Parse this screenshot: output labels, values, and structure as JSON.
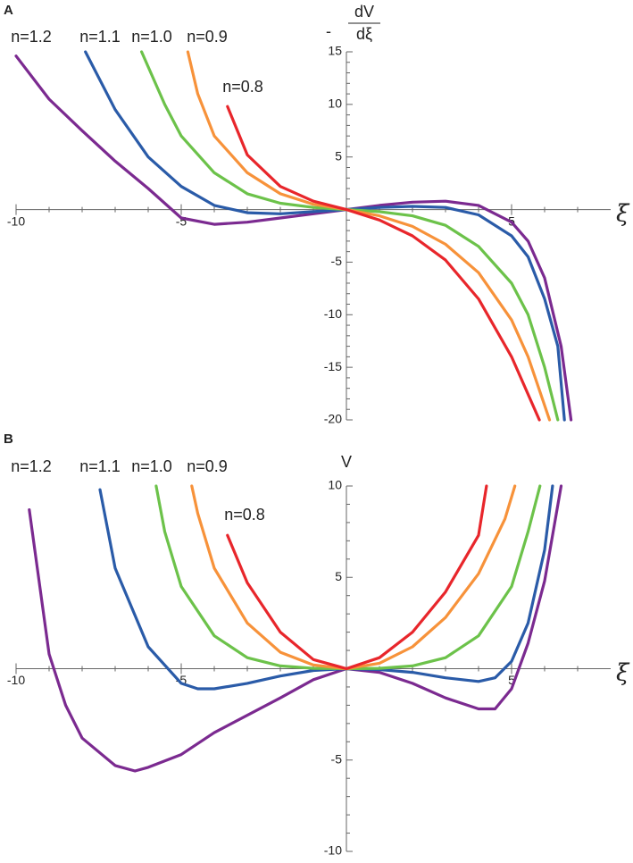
{
  "chart_data": [
    {
      "type": "line",
      "panel_label": "A",
      "y_label": {
        "sign": "-",
        "numerator": "dV",
        "denominator": "dξ"
      },
      "x_label": "ξ",
      "xlim": [
        -10,
        8
      ],
      "ylim": [
        -20,
        15
      ],
      "xticks": [
        -10,
        -5,
        5
      ],
      "yticks": [
        -20,
        -15,
        -10,
        -5,
        5,
        10,
        15
      ],
      "xminorticks": [
        -9,
        -8,
        -7,
        -6,
        -4,
        -3,
        -2,
        -1,
        1,
        2,
        3,
        4,
        6,
        7
      ],
      "yminorticks": [
        -19,
        -18,
        -17,
        -16,
        -14,
        -13,
        -12,
        -11,
        -9,
        -8,
        -7,
        -6,
        -4,
        -3,
        -2,
        -1,
        1,
        2,
        3,
        4,
        6,
        7,
        8,
        9,
        11,
        12,
        13,
        14
      ],
      "series": [
        {
          "name": "n=1.2",
          "color": "#7b2a90",
          "x": [
            -10,
            -9,
            -8,
            -7,
            -6,
            -5,
            -4,
            -3,
            -2,
            -1,
            0,
            1,
            2,
            3,
            4,
            5,
            5.5,
            6,
            6.5,
            6.8
          ],
          "values": [
            14.6,
            10.5,
            7.5,
            4.6,
            2.0,
            -0.8,
            -1.4,
            -1.2,
            -0.8,
            -0.4,
            0,
            0.4,
            0.7,
            0.8,
            0.4,
            -1.2,
            -3,
            -6.5,
            -13,
            -20
          ]
        },
        {
          "name": "n=1.1",
          "color": "#2a5ba8",
          "x": [
            -7.9,
            -7,
            -6,
            -5,
            -4,
            -3,
            -2,
            -1,
            0,
            1,
            2,
            3,
            4,
            5,
            5.5,
            6,
            6.4,
            6.6
          ],
          "values": [
            15,
            9.5,
            5,
            2.2,
            0.4,
            -0.3,
            -0.4,
            -0.2,
            0,
            0.2,
            0.3,
            0.2,
            -0.5,
            -2.5,
            -4.5,
            -8.5,
            -13,
            -20
          ]
        },
        {
          "name": "n=1.0",
          "color": "#6cc24a",
          "x": [
            -6.2,
            -5.5,
            -5,
            -4,
            -3,
            -2,
            -1,
            0,
            1,
            2,
            3,
            4,
            5,
            5.5,
            6,
            6.4
          ],
          "values": [
            15,
            10,
            7,
            3.5,
            1.5,
            0.6,
            0.2,
            0,
            -0.2,
            -0.6,
            -1.5,
            -3.5,
            -7,
            -10,
            -15,
            -20
          ]
        },
        {
          "name": "n=0.9",
          "color": "#f7923a",
          "x": [
            -4.8,
            -4.5,
            -4,
            -3,
            -2,
            -1,
            0,
            1,
            2,
            3,
            4,
            5,
            5.5,
            6.15
          ],
          "values": [
            15,
            11,
            7,
            3.5,
            1.5,
            0.5,
            0,
            -0.6,
            -1.6,
            -3.3,
            -6,
            -10.5,
            -14,
            -20
          ]
        },
        {
          "name": "n=0.8",
          "color": "#e8262b",
          "x": [
            -3.6,
            -3,
            -2,
            -1,
            0,
            1,
            2,
            3,
            4,
            5,
            5.84
          ],
          "values": [
            9.8,
            5.2,
            2.2,
            0.8,
            0,
            -1.0,
            -2.5,
            -4.8,
            -8.5,
            -14,
            -20
          ]
        }
      ]
    },
    {
      "type": "line",
      "panel_label": "B",
      "y_label": {
        "text": "V"
      },
      "x_label": "ξ",
      "xlim": [
        -10,
        8
      ],
      "ylim": [
        -10,
        10
      ],
      "xticks": [
        -10,
        -5,
        5
      ],
      "yticks": [
        -10,
        -5,
        5,
        10
      ],
      "xminorticks": [
        -9,
        -8,
        -7,
        -6,
        -4,
        -3,
        -2,
        -1,
        1,
        2,
        3,
        4,
        6,
        7
      ],
      "yminorticks": [
        -9,
        -8,
        -7,
        -6,
        -4,
        -3,
        -2,
        -1,
        1,
        2,
        3,
        4,
        6,
        7,
        8,
        9
      ],
      "series": [
        {
          "name": "n=1.2",
          "color": "#7b2a90",
          "x": [
            -9.6,
            -9,
            -8.5,
            -8,
            -7,
            -6.4,
            -6,
            -5,
            -4,
            -2,
            -1,
            0,
            1,
            2,
            3,
            4,
            4.5,
            5,
            5.5,
            6,
            6.5
          ],
          "values": [
            8.7,
            0.8,
            -2,
            -3.8,
            -5.3,
            -5.6,
            -5.4,
            -4.7,
            -3.5,
            -1.6,
            -0.6,
            0,
            -0.2,
            -0.8,
            -1.6,
            -2.2,
            -2.2,
            -1.1,
            1.4,
            4.8,
            10
          ]
        },
        {
          "name": "n=1.1",
          "color": "#2a5ba8",
          "x": [
            -7.46,
            -7,
            -6,
            -5,
            -4.5,
            -4,
            -3,
            -2,
            -1,
            0,
            1,
            2,
            3,
            4,
            4.5,
            5,
            5.5,
            6,
            6.24
          ],
          "values": [
            9.8,
            5.5,
            1.2,
            -0.8,
            -1.1,
            -1.1,
            -0.8,
            -0.4,
            -0.1,
            0,
            -0.05,
            -0.2,
            -0.5,
            -0.7,
            -0.5,
            0.4,
            2.5,
            6.5,
            10
          ]
        },
        {
          "name": "n=1.0",
          "color": "#6cc24a",
          "x": [
            -5.76,
            -5.5,
            -5,
            -4,
            -3,
            -2,
            -1,
            0,
            1,
            2,
            3,
            4,
            5,
            5.5,
            5.86
          ],
          "values": [
            10,
            7.5,
            4.5,
            1.8,
            0.6,
            0.15,
            0.02,
            0,
            0.02,
            0.15,
            0.6,
            1.8,
            4.5,
            7.5,
            10
          ]
        },
        {
          "name": "n=0.9",
          "color": "#f7923a",
          "x": [
            -4.68,
            -4.5,
            -4,
            -3,
            -2,
            -1,
            0,
            1,
            2,
            3,
            4,
            4.8,
            5.1
          ],
          "values": [
            10,
            8.5,
            5.5,
            2.5,
            0.9,
            0.2,
            0,
            0.3,
            1.2,
            2.8,
            5.2,
            8.2,
            10
          ]
        },
        {
          "name": "n=0.8",
          "color": "#e8262b",
          "x": [
            -3.6,
            -3,
            -2,
            -1,
            0,
            1,
            2,
            3,
            4,
            4.24
          ],
          "values": [
            7.3,
            4.7,
            2.0,
            0.5,
            0,
            0.6,
            2.0,
            4.2,
            7.3,
            10
          ]
        }
      ]
    }
  ]
}
